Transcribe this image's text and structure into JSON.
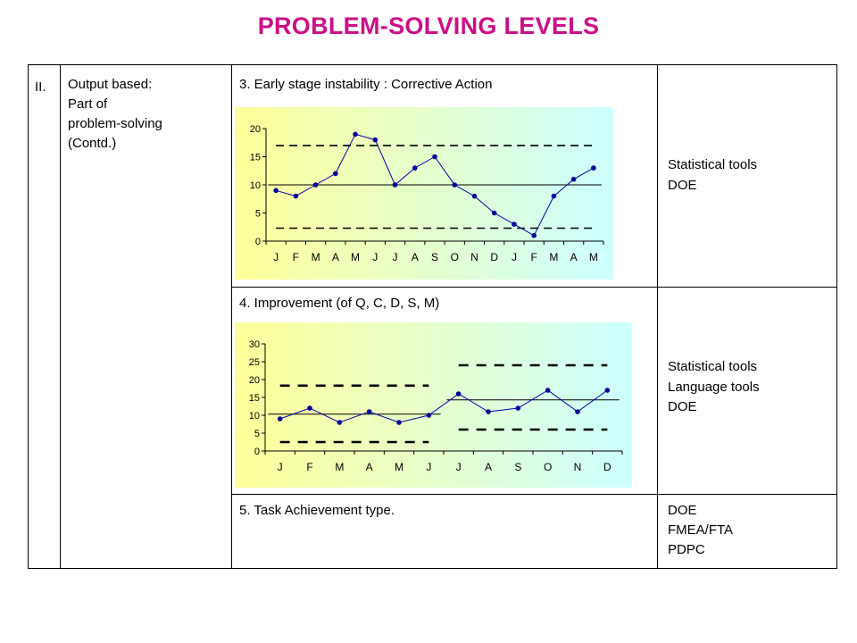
{
  "page": {
    "title": "PROBLEM-SOLVING LEVELS"
  },
  "table": {
    "level": "II.",
    "desc": [
      "Output based:",
      "Part of",
      "problem-solving",
      "(Contd.)"
    ],
    "rows": [
      {
        "heading": "3.   Early stage instability  :  Corrective Action",
        "tools": [
          "Statistical tools",
          "DOE"
        ]
      },
      {
        "heading": "4.   Improvement (of Q, C, D, S, M)",
        "tools": [
          "Statistical tools",
          "Language tools",
          "DOE"
        ]
      },
      {
        "heading": "5.   Task Achievement type.",
        "tools": [
          "DOE",
          "FMEA/FTA",
          "PDPC"
        ]
      }
    ]
  },
  "chart_data": [
    {
      "type": "line",
      "title": "Early stage instability",
      "categories": [
        "J",
        "F",
        "M",
        "A",
        "M",
        "J",
        "J",
        "A",
        "S",
        "O",
        "N",
        "D",
        "J",
        "F",
        "M",
        "A",
        "M"
      ],
      "values": [
        9,
        8,
        10,
        12,
        19,
        18,
        10,
        13,
        15,
        10,
        8,
        5,
        3,
        1,
        8,
        11,
        13
      ],
      "ylim": [
        0,
        20
      ],
      "yticks": [
        0,
        5,
        10,
        15,
        20
      ],
      "center_line": [
        {
          "from": 0,
          "to": 16,
          "value": 10
        }
      ],
      "upper_limit": [
        {
          "from": 0,
          "to": 16,
          "value": 17
        }
      ],
      "lower_limit": [
        {
          "from": 0,
          "to": 16,
          "value": 2.3
        }
      ],
      "colors": {
        "line": "#0000aa",
        "marker": "#000099",
        "bg_left": "#ffff99",
        "bg_right": "#ccffff"
      }
    },
    {
      "type": "line",
      "title": "Improvement",
      "categories": [
        "J",
        "F",
        "M",
        "A",
        "M",
        "J",
        "J",
        "A",
        "S",
        "O",
        "N",
        "D"
      ],
      "values": [
        9,
        12,
        8,
        11,
        8,
        10,
        16,
        11,
        12,
        17,
        11,
        17
      ],
      "ylim": [
        0,
        30
      ],
      "yticks": [
        0,
        5,
        10,
        15,
        20,
        25,
        30
      ],
      "center_line": [
        {
          "from": 0,
          "to": 5,
          "value": 10.3
        },
        {
          "from": 6,
          "to": 11,
          "value": 14.3
        }
      ],
      "upper_limit": [
        {
          "from": 0,
          "to": 5,
          "value": 18.3
        },
        {
          "from": 6,
          "to": 11,
          "value": 24
        }
      ],
      "lower_limit": [
        {
          "from": 0,
          "to": 5,
          "value": 2.5
        },
        {
          "from": 6,
          "to": 11,
          "value": 6
        }
      ],
      "colors": {
        "line": "#0000aa",
        "marker": "#000099",
        "bg_left": "#ffff99",
        "bg_right": "#ccffff"
      }
    }
  ]
}
